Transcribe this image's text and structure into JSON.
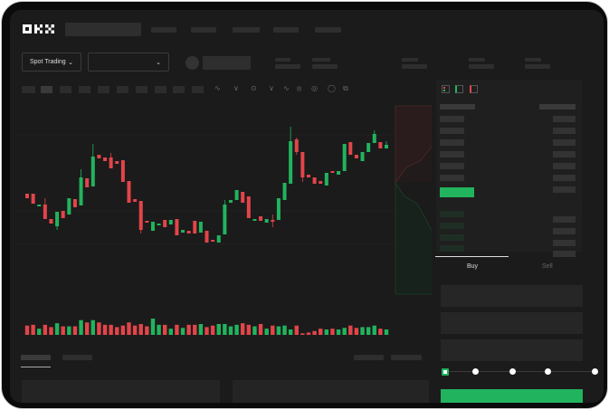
{
  "header": {
    "logo": "OKX",
    "nav_items": [
      "",
      "",
      "",
      "",
      ""
    ]
  },
  "toolbar": {
    "market_select": "Spot Trading",
    "pair_select": "",
    "chevron": "chevron-down-icon"
  },
  "order_panel": {
    "tabs": [
      "Buy",
      "Sell"
    ],
    "active_tab": "Buy",
    "slider_percent": 0
  },
  "colors": {
    "up": "#22b35e",
    "down": "#e2454a",
    "background": "#1b1b1b"
  },
  "chart_data": {
    "type": "candlestick",
    "candles": [
      [
        97,
        92,
        97,
        92
      ],
      [
        97,
        86,
        97,
        86
      ],
      [
        83,
        85,
        85,
        83
      ],
      [
        85,
        69,
        92,
        69
      ],
      [
        69,
        64,
        69,
        64
      ],
      [
        61,
        77,
        77,
        57
      ],
      [
        78,
        70,
        78,
        70
      ],
      [
        74,
        92,
        92,
        74
      ],
      [
        91,
        82,
        91,
        82
      ],
      [
        84,
        115,
        124,
        84
      ],
      [
        114,
        104,
        114,
        104
      ],
      [
        105,
        138,
        152,
        105
      ],
      [
        140,
        136,
        140,
        136
      ],
      [
        137,
        133,
        137,
        133
      ],
      [
        137,
        125,
        142,
        125
      ],
      [
        133,
        130,
        133,
        130
      ],
      [
        134,
        110,
        134,
        110
      ],
      [
        111,
        87,
        111,
        87
      ],
      [
        91,
        88,
        91,
        88
      ],
      [
        89,
        57,
        89,
        53
      ],
      [
        67,
        65,
        67,
        65
      ],
      [
        56,
        66,
        66,
        56
      ],
      [
        62,
        64,
        64,
        62
      ],
      [
        68,
        60,
        68,
        60
      ],
      [
        63,
        68,
        68,
        63
      ],
      [
        69,
        51,
        69,
        51
      ],
      [
        54,
        57,
        57,
        54
      ],
      [
        56,
        53,
        56,
        53
      ],
      [
        67,
        53,
        67,
        53
      ],
      [
        54,
        66,
        66,
        54
      ],
      [
        56,
        43,
        56,
        43
      ],
      [
        46,
        44,
        46,
        44
      ],
      [
        43,
        51,
        51,
        43
      ],
      [
        52,
        85,
        90,
        52
      ],
      [
        87,
        90,
        90,
        87
      ],
      [
        90,
        101,
        101,
        90
      ],
      [
        99,
        87,
        99,
        87
      ],
      [
        94,
        70,
        94,
        70
      ],
      [
        67,
        69,
        69,
        67
      ],
      [
        72,
        67,
        72,
        67
      ],
      [
        65,
        69,
        69,
        65
      ],
      [
        68,
        66,
        74,
        60
      ],
      [
        68,
        92,
        92,
        68
      ],
      [
        90,
        109,
        109,
        90
      ],
      [
        108,
        155,
        171,
        108
      ],
      [
        157,
        143,
        159,
        140
      ],
      [
        143,
        115,
        143,
        110
      ],
      [
        118,
        115,
        118,
        115
      ],
      [
        115,
        108,
        115,
        108
      ],
      [
        111,
        108,
        111,
        108
      ],
      [
        106,
        120,
        120,
        106
      ],
      [
        122,
        120,
        122,
        120
      ],
      [
        118,
        122,
        122,
        118
      ],
      [
        122,
        152,
        152,
        122
      ],
      [
        154,
        140,
        154,
        140
      ],
      [
        140,
        136,
        140,
        136
      ],
      [
        133,
        143,
        143,
        133
      ],
      [
        143,
        153,
        153,
        143
      ],
      [
        153,
        163,
        167,
        153
      ],
      [
        154,
        147,
        154,
        147
      ],
      [
        147,
        151,
        155,
        147
      ]
    ],
    "volume": [
      12,
      13,
      8,
      13,
      10,
      15,
      11,
      11,
      11,
      19,
      16,
      19,
      16,
      13,
      13,
      10,
      12,
      16,
      12,
      14,
      11,
      21,
      13,
      13,
      8,
      13,
      9,
      13,
      13,
      14,
      10,
      12,
      14,
      14,
      11,
      13,
      15,
      13,
      11,
      14,
      8,
      12,
      11,
      12,
      7,
      12,
      2,
      3,
      5,
      8,
      7,
      8,
      7,
      9,
      12,
      9,
      10,
      10,
      12,
      8,
      7
    ]
  }
}
